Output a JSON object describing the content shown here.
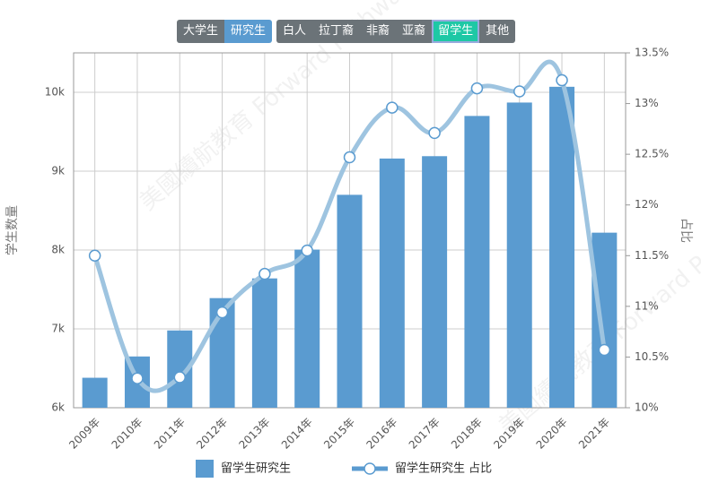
{
  "tabs": [
    [
      "大学生",
      "研究生"
    ],
    [
      "白人",
      "拉丁裔",
      "非裔",
      "亚裔",
      "留学生",
      "其他"
    ]
  ],
  "watermark": "美國續航教育 Forward Pathway LLC",
  "chart_data": {
    "type": "bar-line",
    "categories": [
      "2009年",
      "2010年",
      "2011年",
      "2012年",
      "2013年",
      "2014年",
      "2015年",
      "2016年",
      "2017年",
      "2018年",
      "2019年",
      "2020年",
      "2021年"
    ],
    "series": [
      {
        "name": "留学生研究生",
        "type": "bar",
        "color": "#5a9bd0",
        "values": [
          6380,
          6650,
          6980,
          7390,
          7640,
          8005,
          8700,
          9160,
          9190,
          9700,
          9870,
          10070,
          8220
        ]
      },
      {
        "name": "留学生研究生 占比",
        "type": "line",
        "axis": "y2",
        "color": "#9ec4e0",
        "values": [
          11.5,
          10.29,
          10.3,
          10.94,
          11.32,
          11.55,
          12.47,
          12.96,
          12.71,
          13.15,
          13.12,
          13.23,
          10.57
        ]
      }
    ],
    "ylabel": "学生数量",
    "y2label": "占比",
    "ylim": [
      6000,
      10500
    ],
    "yticks": [
      {
        "value": 6000,
        "label": "6k"
      },
      {
        "value": 7000,
        "label": "7k"
      },
      {
        "value": 8000,
        "label": "8k"
      },
      {
        "value": 9000,
        "label": "9k"
      },
      {
        "value": 10000,
        "label": "10k"
      }
    ],
    "y2lim": [
      10,
      13.5
    ],
    "y2ticks": [
      {
        "value": 10,
        "label": "10%"
      },
      {
        "value": 10.5,
        "label": "10.5%"
      },
      {
        "value": 11,
        "label": "11%"
      },
      {
        "value": 11.5,
        "label": "11.5%"
      },
      {
        "value": 12,
        "label": "12%"
      },
      {
        "value": 12.5,
        "label": "12.5%"
      },
      {
        "value": 13,
        "label": "13%"
      },
      {
        "value": 13.5,
        "label": "13.5%"
      }
    ],
    "grid": true
  }
}
